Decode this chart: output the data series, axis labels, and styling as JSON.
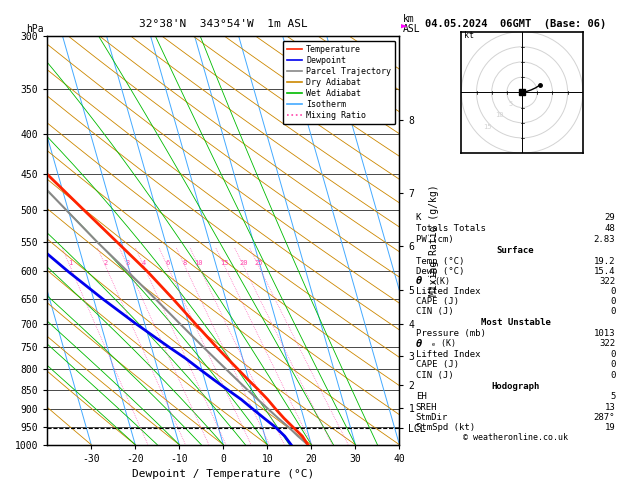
{
  "title_left": "32°38'N  343°54'W  1m ASL",
  "title_right": "04.05.2024  06GMT  (Base: 06)",
  "xlabel": "Dewpoint / Temperature (°C)",
  "ylabel_right": "Mixing Ratio (g/kg)",
  "isotherm_color": "#44aaff",
  "dry_adiabat_color": "#cc8800",
  "wet_adiabat_color": "#00bb00",
  "mixing_ratio_color": "#ff44aa",
  "temp_profile_color": "#ff2200",
  "dewp_profile_color": "#0000ee",
  "parcel_color": "#888888",
  "legend_items": [
    {
      "label": "Temperature",
      "color": "#ff2200",
      "style": "solid"
    },
    {
      "label": "Dewpoint",
      "color": "#0000ee",
      "style": "solid"
    },
    {
      "label": "Parcel Trajectory",
      "color": "#888888",
      "style": "solid"
    },
    {
      "label": "Dry Adiabat",
      "color": "#cc8800",
      "style": "solid"
    },
    {
      "label": "Wet Adiabat",
      "color": "#00bb00",
      "style": "solid"
    },
    {
      "label": "Isotherm",
      "color": "#44aaff",
      "style": "solid"
    },
    {
      "label": "Mixing Ratio",
      "color": "#ff44aa",
      "style": "dotted"
    }
  ],
  "temperature_profile": {
    "pressure": [
      1000,
      975,
      950,
      925,
      900,
      875,
      850,
      825,
      800,
      775,
      750,
      700,
      650,
      600,
      550,
      500,
      450,
      400,
      350,
      300
    ],
    "temp": [
      19.2,
      18.5,
      17.0,
      15.5,
      14.2,
      13.0,
      11.5,
      9.8,
      8.2,
      6.5,
      4.8,
      1.5,
      -2.0,
      -6.0,
      -11.0,
      -16.5,
      -22.5,
      -30.0,
      -37.0,
      -46.0
    ]
  },
  "dewpoint_profile": {
    "pressure": [
      1000,
      975,
      950,
      925,
      900,
      875,
      850,
      825,
      800,
      775,
      750,
      700,
      650,
      600,
      550,
      500,
      450,
      400,
      350,
      300
    ],
    "dewp": [
      15.4,
      14.5,
      13.0,
      11.0,
      9.0,
      7.0,
      4.5,
      2.0,
      -0.5,
      -3.0,
      -6.0,
      -12.0,
      -18.0,
      -24.0,
      -30.0,
      -36.0,
      -38.0,
      -40.0,
      -42.0,
      -44.0
    ]
  },
  "parcel_profile": {
    "pressure": [
      1000,
      975,
      950,
      925,
      900,
      850,
      800,
      750,
      700,
      650,
      600,
      550,
      500,
      450,
      400,
      350,
      300
    ],
    "temp": [
      19.2,
      17.5,
      16.0,
      14.2,
      12.5,
      9.0,
      5.5,
      1.8,
      -2.0,
      -6.0,
      -10.5,
      -15.5,
      -20.5,
      -26.0,
      -32.0,
      -39.0,
      -47.0
    ]
  },
  "lcl_pressure": 953,
  "mixing_ratio_lines": [
    1,
    2,
    3,
    4,
    6,
    8,
    10,
    15,
    20,
    25
  ],
  "mixing_ratio_label_pressure": 590,
  "km_right_pressures": [
    953,
    898,
    838,
    770,
    700,
    633,
    557,
    476,
    384
  ],
  "km_right_labels": [
    "LCL",
    "1",
    "2",
    "3",
    "4",
    "5",
    "6",
    "7",
    "8"
  ],
  "table_data": {
    "K": 29,
    "Totals Totals": 48,
    "PW (cm)": "2.83",
    "Surface_Temp": "19.2",
    "Surface_Dewp": "15.4",
    "Surface_theta_e": 322,
    "Surface_LI": 0,
    "Surface_CAPE": 0,
    "Surface_CIN": 0,
    "MU_Pressure": 1013,
    "MU_theta_e": 322,
    "MU_LI": 0,
    "MU_CAPE": 0,
    "MU_CIN": 0,
    "Hodo_EH": 5,
    "Hodo_SREH": 13,
    "Hodo_StmDir": "287°",
    "Hodo_StmSpd": 19
  }
}
